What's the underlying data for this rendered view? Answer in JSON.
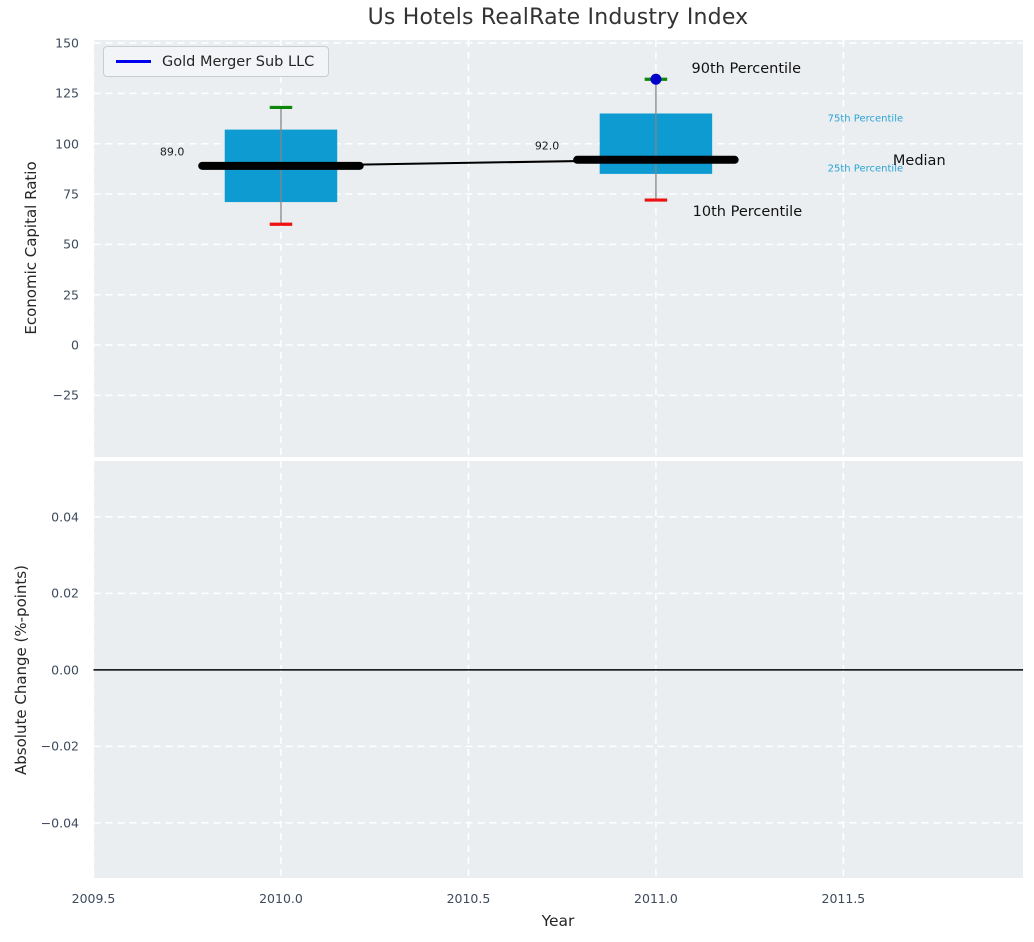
{
  "title": "Us Hotels RealRate Industry Index",
  "legend": {
    "label": "Gold Merger Sub LLC"
  },
  "top_axis": {
    "ylabel": "Economic Capital Ratio",
    "yticks": [
      {
        "v": 150,
        "label": "150"
      },
      {
        "v": 125,
        "label": "125"
      },
      {
        "v": 100,
        "label": "100"
      },
      {
        "v": 75,
        "label": "75"
      },
      {
        "v": 50,
        "label": "50"
      },
      {
        "v": 25,
        "label": "25"
      },
      {
        "v": 0,
        "label": "0"
      },
      {
        "v": -25,
        "label": "−25"
      }
    ]
  },
  "bottom_axis": {
    "ylabel": "Absolute Change (%-points)",
    "yticks": [
      {
        "v": 0.04,
        "label": "0.04"
      },
      {
        "v": 0.02,
        "label": "0.02"
      },
      {
        "v": 0,
        "label": "0.00"
      },
      {
        "v": -0.02,
        "label": "−0.02"
      },
      {
        "v": -0.04,
        "label": "−0.04"
      }
    ]
  },
  "x_axis": {
    "label": "Year",
    "ticks": [
      {
        "v": 2009.5,
        "label": "2009.5"
      },
      {
        "v": 2010,
        "label": "2010.0"
      },
      {
        "v": 2010.5,
        "label": "2010.5"
      },
      {
        "v": 2011,
        "label": "2011.0"
      },
      {
        "v": 2011.5,
        "label": "2011.5"
      }
    ]
  },
  "annotations": [
    {
      "text": "89.0",
      "year": 2009.677,
      "value": 96,
      "color": "#1a1a1a",
      "size": 11
    },
    {
      "text": "92.0",
      "year": 2010.677,
      "value": 99,
      "color": "#1a1a1a",
      "size": 11
    },
    {
      "text": "90th Percentile",
      "year": 2011.095,
      "value": 137,
      "color": "#111111",
      "size": 14.5
    },
    {
      "text": "10th Percentile",
      "year": 2011.098,
      "value": 66,
      "color": "#111111",
      "size": 14.5
    },
    {
      "text": "75th Percentile",
      "year": 2011.458,
      "value": 112.5,
      "color": "#29a3d5",
      "size": 10
    },
    {
      "text": "25th Percentile",
      "year": 2011.458,
      "value": 87.5,
      "color": "#29a3d5",
      "size": 10
    },
    {
      "text": "Median",
      "year": 2011.632,
      "value": 91.5,
      "color": "#111111",
      "size": 14.5
    }
  ],
  "colors": {
    "box": "#0d9bd1",
    "median_line": "#000000",
    "trend_line": "#000000",
    "whisker": "#858585",
    "cap_high": "#0b870b",
    "cap_low": "#ee1111",
    "company_dot": "#0000cc",
    "legend_line": "#0000ee",
    "grid": "#ffffff",
    "plot_bg": "#ebeef0",
    "tick_text": "#3e4b5c",
    "annotation_accent": "#29a3d5",
    "zero_line": "#000000"
  },
  "chart_data": {
    "type": "boxplot",
    "title": "Us Hotels RealRate Industry Index",
    "xlabel": "Year",
    "ylabel_top": "Economic Capital Ratio",
    "ylabel_bottom": "Absolute Change (%-points)",
    "x": [
      2010,
      2011
    ],
    "years": [
      {
        "year": 2010,
        "p10": 60,
        "p25": 71,
        "median": 89,
        "p75": 107,
        "p90": 118
      },
      {
        "year": 2011,
        "p10": 72,
        "p25": 85,
        "median": 92,
        "p75": 115,
        "p90": 132
      }
    ],
    "series": [
      {
        "name": "10th Percentile",
        "values": [
          60,
          72
        ]
      },
      {
        "name": "25th Percentile",
        "values": [
          71,
          85
        ]
      },
      {
        "name": "Median",
        "values": [
          89,
          92
        ]
      },
      {
        "name": "75th Percentile",
        "values": [
          107,
          115
        ]
      },
      {
        "name": "90th Percentile",
        "values": [
          118,
          132
        ]
      }
    ],
    "company_marker": {
      "year": 2011,
      "value": 132,
      "label": "Gold Merger Sub LLC"
    },
    "median_labels": [
      "89.0",
      "92.0"
    ],
    "x_range": [
      2009.5,
      2011.979
    ],
    "top_ylim": [
      -55.6,
      151.5
    ],
    "bottom_ylim": [
      -0.0544,
      0.0546
    ],
    "grid": "white-dashed",
    "legend_position": "upper-left",
    "bottom_zero_line": 0,
    "layout": {
      "box_halfwidth_years": 0.15,
      "median_halfwidth_years": 0.21,
      "cap_halfwidth_years": 0.03,
      "dot_radius_px": 5.5
    }
  }
}
